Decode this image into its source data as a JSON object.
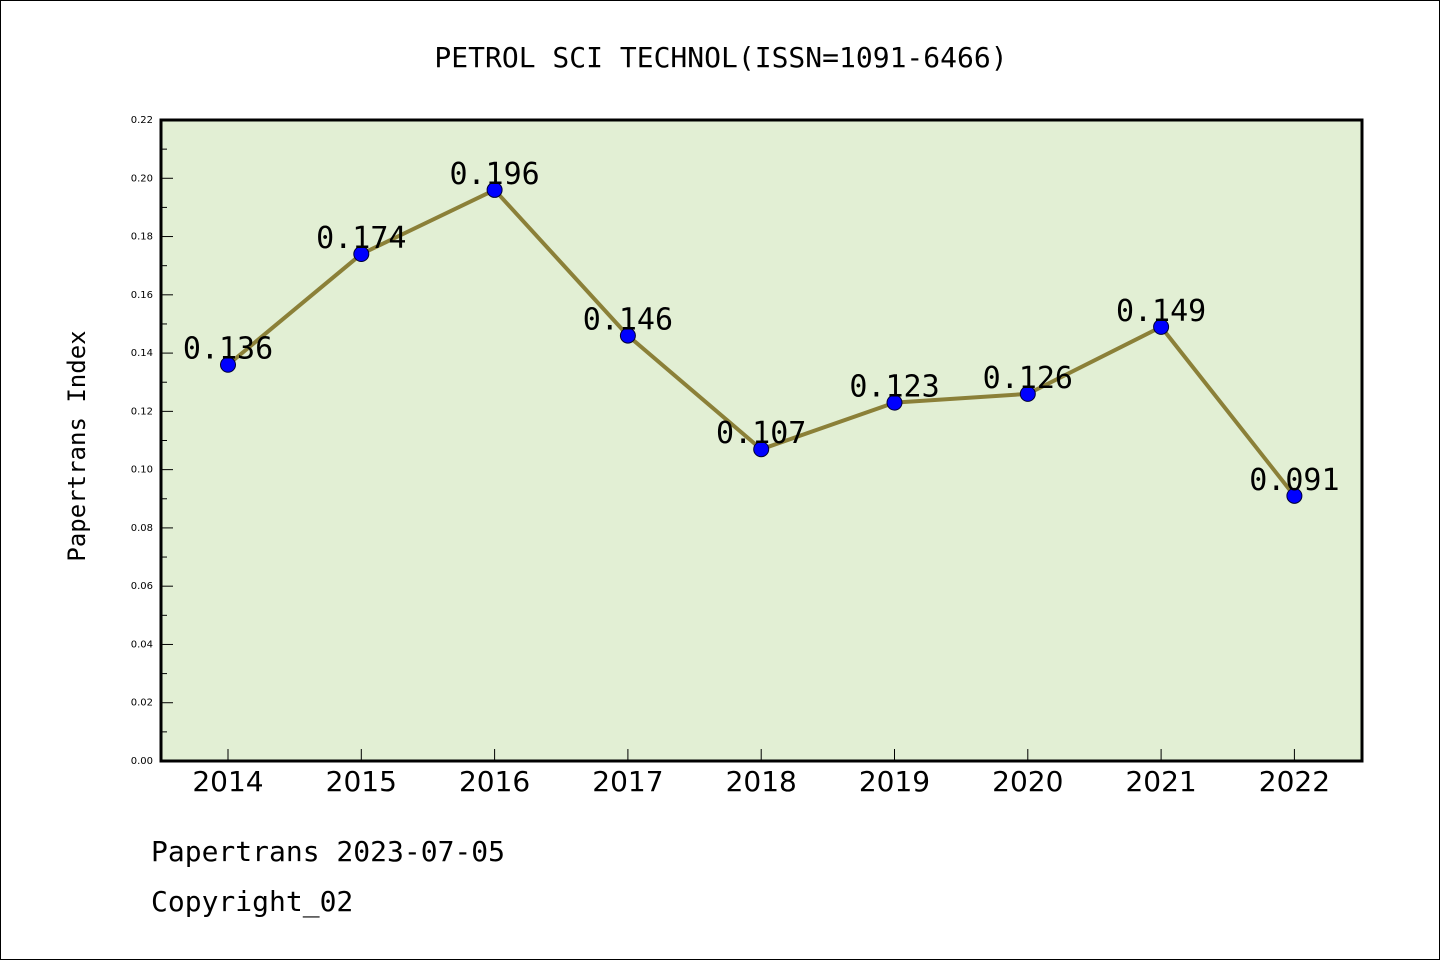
{
  "chart_data": {
    "type": "line",
    "title": "PETROL SCI TECHNOL(ISSN=1091-6466)",
    "xlabel": "",
    "ylabel": "Papertrans Index",
    "categories": [
      "2014",
      "2015",
      "2016",
      "2017",
      "2018",
      "2019",
      "2020",
      "2021",
      "2022"
    ],
    "series": [
      {
        "values": [
          0.136,
          0.174,
          0.196,
          0.146,
          0.107,
          0.123,
          0.126,
          0.149,
          0.091
        ],
        "data_labels": [
          "0.136",
          "0.174",
          "0.196",
          "0.146",
          "0.107",
          "0.123",
          "0.126",
          "0.149",
          "0.091"
        ]
      }
    ],
    "ylim": [
      0,
      0.22
    ],
    "yticks": [
      "0.00",
      "0.02",
      "0.04",
      "0.06",
      "0.08",
      "0.10",
      "0.12",
      "0.14",
      "0.16",
      "0.18",
      "0.20",
      "0.22"
    ],
    "grid": false,
    "legend": "none",
    "colors": {
      "plot_background": "#e2efd4",
      "line": "#8b8038",
      "marker": "#0000ff",
      "axes": "#000000"
    }
  },
  "footer": {
    "line1": "Papertrans 2023-07-05",
    "line2": "Copyright_02"
  }
}
